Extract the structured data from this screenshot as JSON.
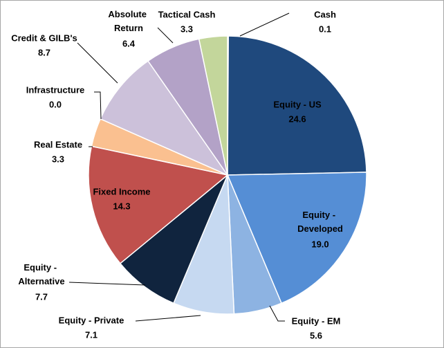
{
  "chart_data": {
    "type": "pie",
    "categories": [
      "Cash",
      "Equity - US",
      "Equity - Developed",
      "Equity - EM",
      "Equity - Private",
      "Equity - Alternative",
      "Fixed Income",
      "Real Estate",
      "Infrastructure",
      "Credit & GILB's",
      "Absolute Return",
      "Tactical Cash"
    ],
    "values": [
      0.1,
      24.6,
      19.0,
      5.6,
      7.1,
      7.7,
      14.3,
      3.3,
      0.0,
      8.7,
      6.4,
      3.3
    ],
    "value_labels": [
      "0.1",
      "24.6",
      "19.0",
      "5.6",
      "7.1",
      "7.7",
      "14.3",
      "3.3",
      "0.0",
      "8.7",
      "6.4",
      "3.3"
    ],
    "colors": [
      "#9bbb59",
      "#1f497d",
      "#558ed5",
      "#8db3e2",
      "#c6d9f1",
      "#10243e",
      "#c0504d",
      "#fac090",
      "#e6b9b8",
      "#ccc1da",
      "#b3a2c7",
      "#c3d69b"
    ]
  }
}
